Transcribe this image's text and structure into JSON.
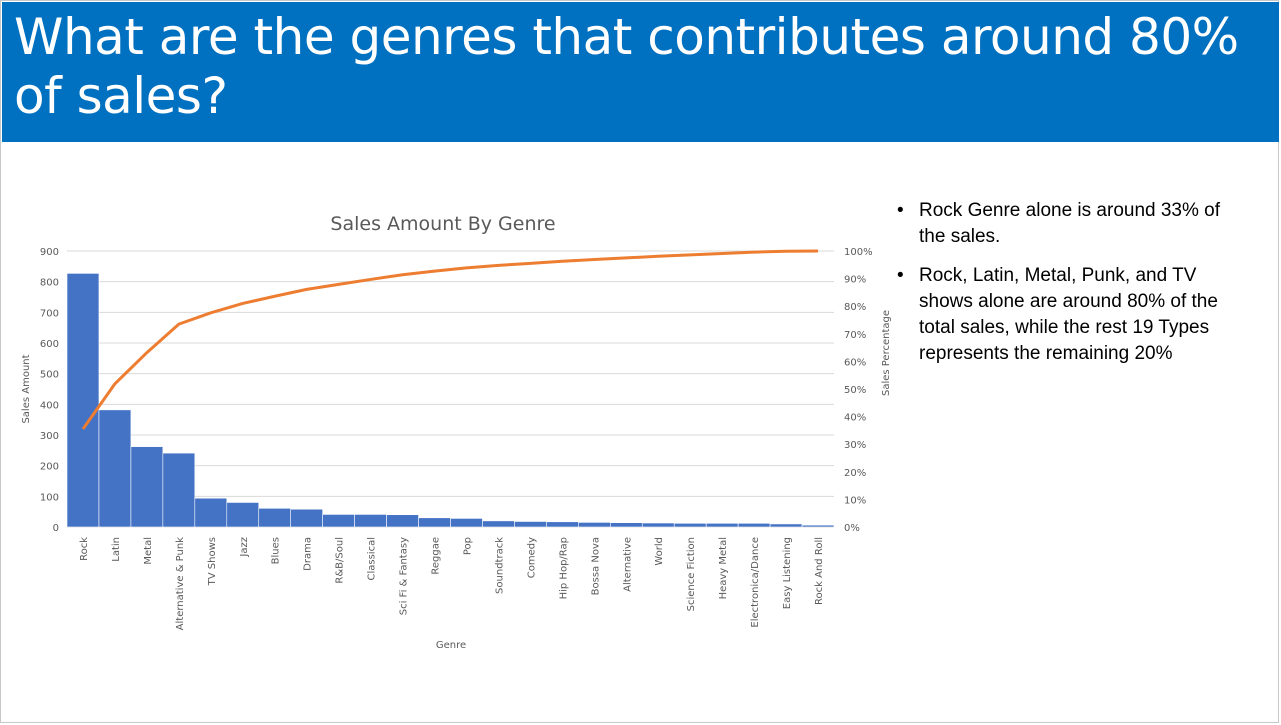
{
  "slide": {
    "title": "What are the genres that contributes around 80% of sales?",
    "bullets": [
      "Rock Genre alone is around 33% of the sales.",
      "Rock, Latin, Metal, Punk, and TV shows alone are around 80% of the total sales, while the rest 19 Types represents the remaining 20%"
    ]
  },
  "colors": {
    "title_bar": "#0070c0",
    "bars": "#4472c4",
    "line": "#ed7d31",
    "grid": "#d9d9d9"
  },
  "chart_data": {
    "type": "bar",
    "title": "Sales Amount By Genre",
    "xlabel": "Genre",
    "ylabel": "Sales Amount",
    "y2label": "Sales Percentage",
    "ylim": [
      0,
      900
    ],
    "yticks": [
      "0",
      "100",
      "200",
      "300",
      "400",
      "500",
      "600",
      "700",
      "800",
      "900"
    ],
    "y2lim": [
      0,
      100
    ],
    "y2ticks": [
      "0%",
      "10%",
      "20%",
      "30%",
      "40%",
      "50%",
      "60%",
      "70%",
      "80%",
      "90%",
      "100%"
    ],
    "grid": true,
    "categories": [
      "Rock",
      "Latin",
      "Metal",
      "Alternative & Punk",
      "TV Shows",
      "Jazz",
      "Blues",
      "Drama",
      "R&B/Soul",
      "Classical",
      "Sci Fi & Fantasy",
      "Reggae",
      "Pop",
      "Soundtrack",
      "Comedy",
      "Hip Hop/Rap",
      "Bossa Nova",
      "Alternative",
      "World",
      "Science Fiction",
      "Heavy Metal",
      "Electronica/Dance",
      "Easy Listening",
      "Rock And Roll"
    ],
    "series": [
      {
        "type": "bar",
        "axis": "left",
        "values": [
          827,
          382,
          262,
          241,
          94,
          80,
          61,
          58,
          41,
          41,
          40,
          30,
          28,
          20,
          18,
          17,
          15,
          14,
          13,
          12,
          12,
          12,
          10,
          6
        ]
      },
      {
        "type": "line",
        "axis": "right",
        "values": [
          35.5,
          51.9,
          63.2,
          73.5,
          77.6,
          81.0,
          83.6,
          86.1,
          87.9,
          89.7,
          91.4,
          92.7,
          93.9,
          94.8,
          95.5,
          96.3,
          96.9,
          97.5,
          98.1,
          98.6,
          99.1,
          99.6,
          99.9,
          100.0
        ]
      }
    ]
  }
}
